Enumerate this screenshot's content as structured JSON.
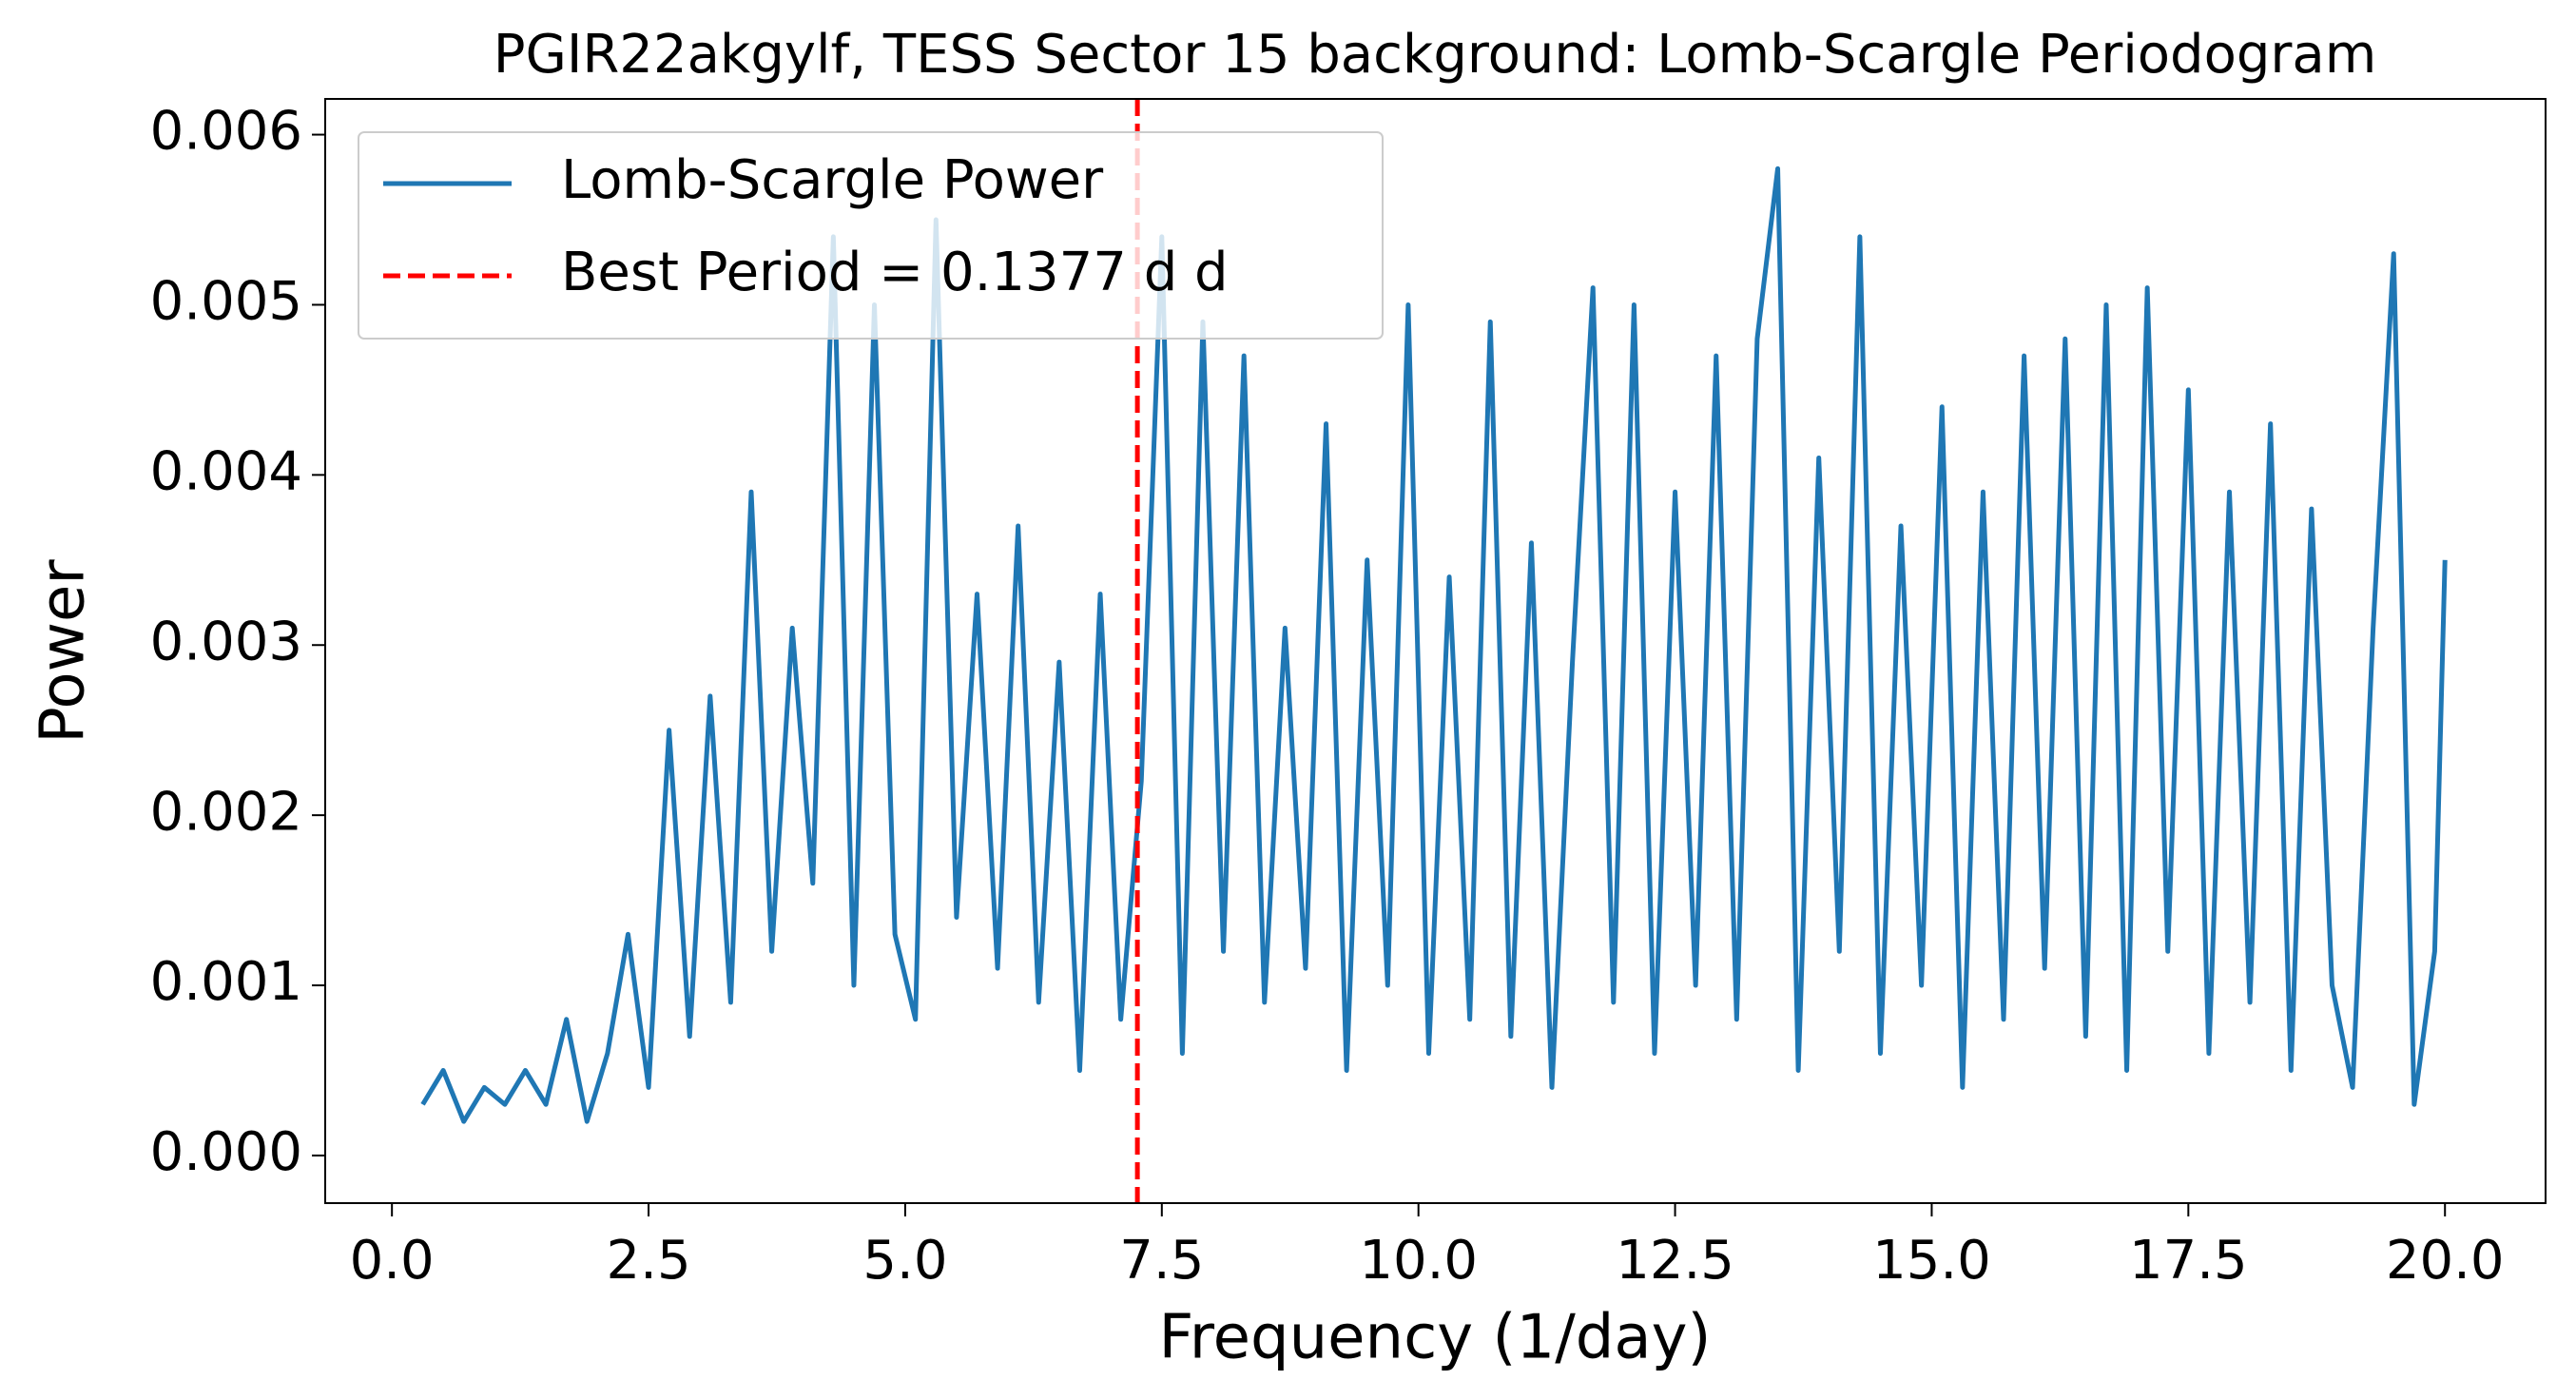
{
  "chart_data": {
    "type": "line",
    "title": "PGIR22akgylf, TESS Sector 15 background: Lomb-Scargle Periodogram",
    "x_label": "Frequency (1/day)",
    "y_label": "Power",
    "xlim": [
      -0.65,
      20.98
    ],
    "ylim": [
      -0.00028,
      0.00621
    ],
    "xticks": [
      {
        "value": 0,
        "label": "0.0"
      },
      2.5,
      {
        "value": 5,
        "label": "5.0"
      },
      7.5,
      {
        "value": 10,
        "label": "10.0"
      },
      12.5,
      {
        "value": 15,
        "label": "15.0"
      },
      17.5,
      {
        "value": 20,
        "label": "20.0"
      }
    ],
    "yticks": [
      {
        "value": 0,
        "label": "0.000"
      },
      0.001,
      0.002,
      0.003,
      0.004,
      0.005,
      0.006
    ],
    "legend": "upper left",
    "series": [
      {
        "name": "Lomb-Scargle Power",
        "color": "#1f77b4",
        "x": [
          0.3,
          0.5,
          0.7,
          0.9,
          1.1,
          1.3,
          1.5,
          1.7,
          1.9,
          2.1,
          2.3,
          2.5,
          2.7,
          2.9,
          3.1,
          3.3,
          3.5,
          3.7,
          3.9,
          4.1,
          4.3,
          4.5,
          4.7,
          4.9,
          5.1,
          5.3,
          5.5,
          5.7,
          5.9,
          6.1,
          6.3,
          6.5,
          6.7,
          6.9,
          7.1,
          7.3,
          7.5,
          7.7,
          7.9,
          8.1,
          8.3,
          8.5,
          8.7,
          8.9,
          9.1,
          9.3,
          9.5,
          9.7,
          9.9,
          10.1,
          10.3,
          10.5,
          10.7,
          10.9,
          11.1,
          11.3,
          11.5,
          11.7,
          11.9,
          12.1,
          12.3,
          12.5,
          12.7,
          12.9,
          13.1,
          13.3,
          13.5,
          13.7,
          13.9,
          14.1,
          14.3,
          14.5,
          14.7,
          14.9,
          15.1,
          15.3,
          15.5,
          15.7,
          15.9,
          16.1,
          16.3,
          16.5,
          16.7,
          16.9,
          17.1,
          17.3,
          17.5,
          17.7,
          17.9,
          18.1,
          18.3,
          18.5,
          18.7,
          18.9,
          19.1,
          19.3,
          19.5,
          19.7,
          19.9,
          20.0
        ],
        "values": [
          0.0003,
          0.0005,
          0.0002,
          0.0004,
          0.0003,
          0.0005,
          0.0003,
          0.0008,
          0.0002,
          0.0006,
          0.0013,
          0.0004,
          0.0025,
          0.0007,
          0.0027,
          0.0009,
          0.0039,
          0.0012,
          0.0031,
          0.0016,
          0.0054,
          0.001,
          0.005,
          0.0013,
          0.0008,
          0.0055,
          0.0014,
          0.0033,
          0.0011,
          0.0037,
          0.0009,
          0.0029,
          0.0005,
          0.0033,
          0.0008,
          0.0022,
          0.0054,
          0.0006,
          0.0049,
          0.0012,
          0.0047,
          0.0009,
          0.0031,
          0.0011,
          0.0043,
          0.0005,
          0.0035,
          0.001,
          0.005,
          0.0006,
          0.0034,
          0.0008,
          0.0049,
          0.0007,
          0.0036,
          0.0004,
          0.0029,
          0.0051,
          0.0009,
          0.005,
          0.0006,
          0.0039,
          0.001,
          0.0047,
          0.0008,
          0.0048,
          0.0058,
          0.0005,
          0.0041,
          0.0012,
          0.0054,
          0.0006,
          0.0037,
          0.001,
          0.0044,
          0.0004,
          0.0039,
          0.0008,
          0.0047,
          0.0011,
          0.0048,
          0.0007,
          0.005,
          0.0005,
          0.0051,
          0.0012,
          0.0045,
          0.0006,
          0.0039,
          0.0009,
          0.0043,
          0.0005,
          0.0038,
          0.001,
          0.0004,
          0.0031,
          0.0053,
          0.0003,
          0.0012,
          0.0035
        ]
      }
    ],
    "vlines": [
      {
        "name": "Best Period = 0.1377 d d",
        "color": "#ff0000",
        "x": 7.262
      }
    ]
  }
}
